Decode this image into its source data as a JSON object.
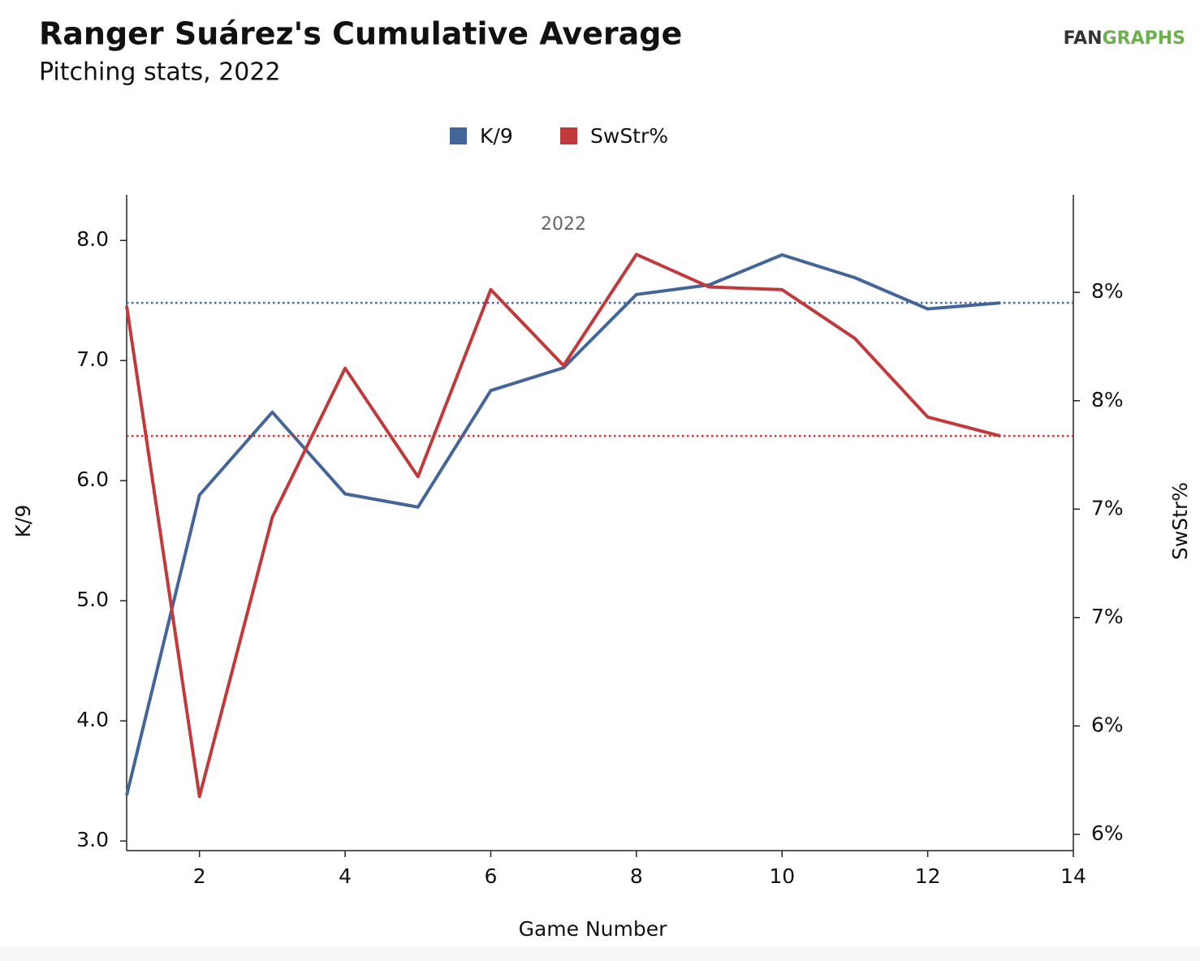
{
  "chart_data": {
    "type": "line",
    "title": "Ranger Suárez's Cumulative Average",
    "subtitle": "Pitching stats, 2022",
    "logo": [
      "FAN",
      "GRAPHS"
    ],
    "annotation": "2022",
    "x_label": "Game Number",
    "y_label": "K/9",
    "y2_label": "SwStr%",
    "x": [
      1,
      2,
      3,
      4,
      5,
      6,
      7,
      8,
      9,
      10,
      11,
      12,
      13
    ],
    "xlim": [
      1,
      14
    ],
    "xticks": [
      2,
      4,
      6,
      8,
      10,
      12,
      14
    ],
    "ylim": [
      2.92,
      8.38
    ],
    "yticks": [
      {
        "value": 3,
        "label": "3.0"
      },
      {
        "value": 4,
        "label": "4.0"
      },
      {
        "value": 5,
        "label": "5.0"
      },
      {
        "value": 6,
        "label": "6.0"
      },
      {
        "value": 7,
        "label": "7.0"
      },
      {
        "value": 8,
        "label": "8.0"
      }
    ],
    "y2lim": [
      5.94,
      8.36
    ],
    "y2ticks": [
      {
        "value": 6.0,
        "label": "6%"
      },
      {
        "value": 6.4,
        "label": "6%"
      },
      {
        "value": 6.8,
        "label": "7%"
      },
      {
        "value": 7.2,
        "label": "7%"
      },
      {
        "value": 7.6,
        "label": "8%"
      },
      {
        "value": 8.0,
        "label": "8%"
      }
    ],
    "legend": "top",
    "series": [
      {
        "name": "K/9",
        "color": "#44659a",
        "average": 7.48,
        "values": [
          3.38,
          5.88,
          6.57,
          5.89,
          5.78,
          6.75,
          6.94,
          7.55,
          7.63,
          7.88,
          7.69,
          7.43,
          7.48
        ]
      },
      {
        "name": "SwStr%",
        "color": "#c1393b",
        "axis": "y2",
        "average": 7.47,
        "values": [
          7.95,
          6.14,
          7.17,
          7.72,
          7.32,
          8.01,
          7.73,
          8.14,
          8.02,
          8.01,
          7.83,
          7.54,
          7.47
        ]
      }
    ]
  }
}
